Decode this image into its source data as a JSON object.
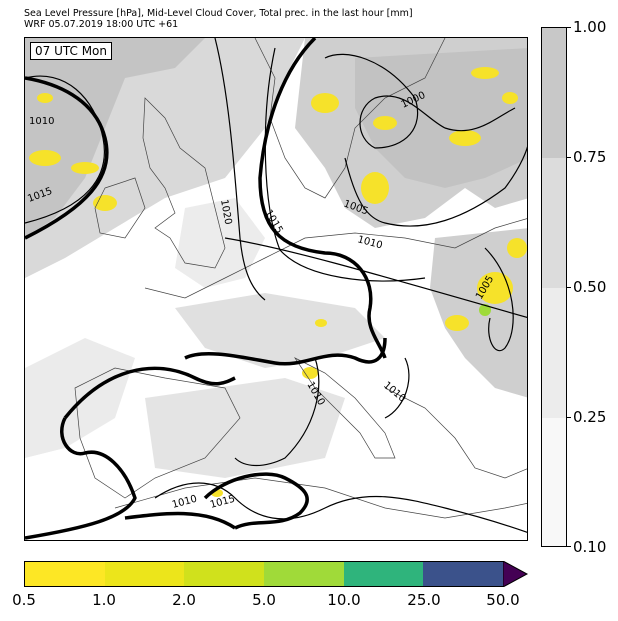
{
  "title": {
    "line1": "Sea Level Pressure [hPa], Mid-Level Cloud Cover, Total prec. in the last hour [mm]",
    "line2": "WRF 05.07.2019 18:00 UTC +61"
  },
  "map": {
    "time_label": "07 UTC Mon",
    "isobar_labels": [
      {
        "text": "1010"
      },
      {
        "text": "1015"
      },
      {
        "text": "1020"
      },
      {
        "text": "1015"
      },
      {
        "text": "1000"
      },
      {
        "text": "1005"
      },
      {
        "text": "1010"
      },
      {
        "text": "1005"
      },
      {
        "text": "1010"
      },
      {
        "text": "1010"
      },
      {
        "text": "1010"
      },
      {
        "text": "1015"
      }
    ],
    "colors": {
      "cloud_light": "#e6e6e6",
      "cloud_mid": "#d2d2d2",
      "cloud_dark": "#bdbdbd",
      "precip_yellow": "#f6e22a",
      "precip_green": "#9edb3a",
      "contour": "#000000",
      "coast": "#444444"
    }
  },
  "cloud_legend": {
    "labels": [
      "1.00",
      "0.75",
      "0.50",
      "0.25",
      "0.10"
    ],
    "colors": [
      "#c8c8c8",
      "#dcdcdc",
      "#ececec",
      "#f8f8f8"
    ]
  },
  "precip_legend": {
    "labels": [
      "0.5",
      "1.0",
      "2.0",
      "5.0",
      "10.0",
      "25.0",
      "50.0"
    ],
    "colors": [
      "#fde725",
      "#ece51b",
      "#d0e11c",
      "#a0da39",
      "#2fb47c",
      "#3b528b",
      "#440154"
    ],
    "extend_color": "#440154"
  }
}
